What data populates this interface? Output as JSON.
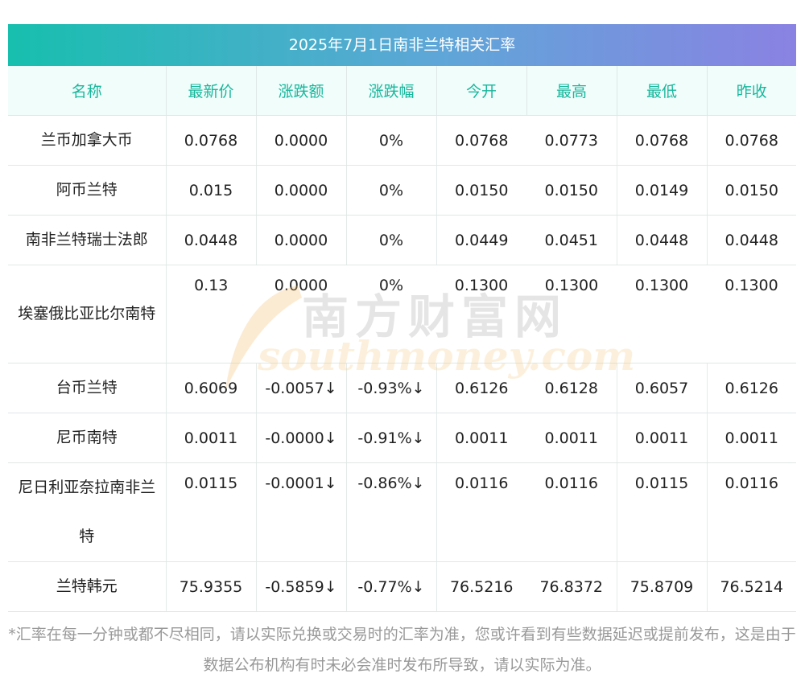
{
  "title": "2025年7月1日南非兰特相关汇率",
  "headers": [
    "名称",
    "最新价",
    "涨跌额",
    "涨跌幅",
    "今开",
    "最高",
    "最低",
    "昨收"
  ],
  "rows": [
    {
      "name": "兰币加拿大币",
      "latest": "0.0768",
      "change": "0.0000",
      "pct": "0%",
      "open": "0.0768",
      "high": "0.0773",
      "low": "0.0768",
      "prev": "0.0768"
    },
    {
      "name": "阿币兰特",
      "latest": "0.015",
      "change": "0.0000",
      "pct": "0%",
      "open": "0.0150",
      "high": "0.0150",
      "low": "0.0149",
      "prev": "0.0150"
    },
    {
      "name": "南非兰特瑞士法郎",
      "latest": "0.0448",
      "change": "0.0000",
      "pct": "0%",
      "open": "0.0449",
      "high": "0.0451",
      "low": "0.0448",
      "prev": "0.0448"
    },
    {
      "name": "埃塞俄比亚比尔南特",
      "latest": "0.13",
      "change": "0.0000",
      "pct": "0%",
      "open": "0.1300",
      "high": "0.1300",
      "low": "0.1300",
      "prev": "0.1300"
    },
    {
      "name": "台币兰特",
      "latest": "0.6069",
      "change": "-0.0057↓",
      "pct": "-0.93%↓",
      "open": "0.6126",
      "high": "0.6128",
      "low": "0.6057",
      "prev": "0.6126"
    },
    {
      "name": "尼币南特",
      "latest": "0.0011",
      "change": "-0.0000↓",
      "pct": "-0.91%↓",
      "open": "0.0011",
      "high": "0.0011",
      "low": "0.0011",
      "prev": "0.0011"
    },
    {
      "name": "尼日利亚奈拉南非兰特",
      "latest": "0.0115",
      "change": "-0.0001↓",
      "pct": "-0.86%↓",
      "open": "0.0116",
      "high": "0.0116",
      "low": "0.0115",
      "prev": "0.0116"
    },
    {
      "name": "兰特韩元",
      "latest": "75.9355",
      "change": "-0.5859↓",
      "pct": "-0.77%↓",
      "open": "76.5216",
      "high": "76.8372",
      "low": "75.8709",
      "prev": "76.5214"
    }
  ],
  "watermark": {
    "cn": "南方财富网",
    "en": "southmoney.com"
  },
  "note": "*汇率在每一分钟或都不尽相同，请以实际兑换或交易时的汇率为准，您或许看到有些数据延迟或提前发布，这是由于数据公布机构有时未必会准时发布所导致，请以实际为准。",
  "colors": {
    "title_start": "#17bfae",
    "title_end": "#8a82e2",
    "header_text": "#18b79c",
    "header_bg": "#f0fdfb",
    "down": "#1a8f2e"
  }
}
